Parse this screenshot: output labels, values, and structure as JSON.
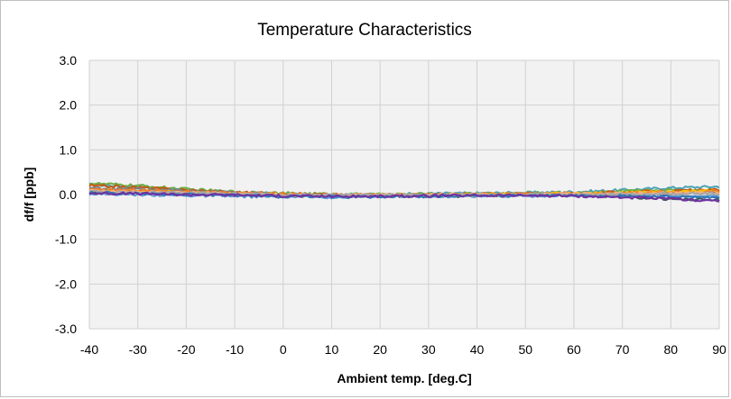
{
  "chart_data": {
    "type": "line",
    "title": "Temperature Characteristics",
    "xlabel": "Ambient temp. [deg.C]",
    "ylabel": "df/f [ppb]",
    "xlim": [
      -40,
      90
    ],
    "ylim": [
      -3.0,
      3.0
    ],
    "x_ticks": [
      "-40",
      "-30",
      "-20",
      "-10",
      "0",
      "10",
      "20",
      "30",
      "40",
      "50",
      "60",
      "70",
      "80",
      "90"
    ],
    "y_ticks": [
      "3.0",
      "2.0",
      "1.0",
      "0.0",
      "-1.0",
      "-2.0",
      "-3.0"
    ],
    "grid": true,
    "legend": "none",
    "x": [
      -40,
      -30,
      -20,
      -10,
      0,
      10,
      20,
      30,
      40,
      50,
      60,
      70,
      80,
      90
    ],
    "series": [
      {
        "color": "#4aa3b8",
        "values": [
          0.22,
          0.18,
          0.1,
          0.05,
          0.02,
          0.0,
          0.0,
          0.02,
          0.03,
          0.04,
          0.06,
          0.1,
          0.15,
          0.18
        ]
      },
      {
        "color": "#70ad47",
        "values": [
          0.25,
          0.2,
          0.12,
          0.06,
          0.03,
          0.01,
          0.0,
          0.01,
          0.02,
          0.03,
          0.04,
          0.07,
          0.1,
          0.12
        ]
      },
      {
        "color": "#c55a11",
        "values": [
          0.2,
          0.16,
          0.1,
          0.05,
          0.02,
          0.0,
          -0.01,
          0.0,
          0.01,
          0.02,
          0.03,
          0.05,
          0.08,
          0.1
        ]
      },
      {
        "color": "#7f7f7f",
        "values": [
          0.15,
          0.12,
          0.08,
          0.04,
          0.01,
          -0.01,
          -0.01,
          0.0,
          0.0,
          0.01,
          0.02,
          0.03,
          0.05,
          0.06
        ]
      },
      {
        "color": "#44546a",
        "values": [
          0.05,
          0.04,
          0.02,
          0.0,
          -0.02,
          -0.04,
          -0.04,
          -0.03,
          -0.03,
          -0.02,
          -0.03,
          -0.05,
          -0.1,
          -0.12
        ]
      },
      {
        "color": "#5b9bd5",
        "values": [
          0.02,
          0.0,
          -0.02,
          -0.04,
          -0.05,
          -0.06,
          -0.05,
          -0.04,
          -0.03,
          -0.03,
          -0.02,
          -0.02,
          -0.03,
          -0.04
        ]
      },
      {
        "color": "#ffc000",
        "values": [
          0.1,
          0.08,
          0.05,
          0.02,
          0.0,
          -0.02,
          -0.02,
          -0.01,
          0.0,
          0.01,
          0.02,
          0.04,
          0.06,
          0.08
        ]
      },
      {
        "color": "#ed7d31",
        "values": [
          0.12,
          0.1,
          0.06,
          0.03,
          0.01,
          -0.01,
          -0.02,
          -0.01,
          0.0,
          0.01,
          0.01,
          0.03,
          0.05,
          0.07
        ]
      },
      {
        "color": "#f4b183",
        "values": [
          0.08,
          0.06,
          0.04,
          0.02,
          0.0,
          -0.01,
          -0.01,
          0.0,
          0.0,
          0.0,
          0.01,
          0.02,
          0.03,
          0.04
        ]
      },
      {
        "color": "#a5a5a5",
        "values": [
          0.06,
          0.05,
          0.03,
          0.01,
          0.0,
          -0.01,
          -0.01,
          -0.01,
          0.0,
          0.0,
          0.0,
          0.01,
          0.02,
          0.02
        ]
      },
      {
        "color": "#2e75b6",
        "values": [
          0.04,
          0.02,
          0.0,
          -0.02,
          -0.04,
          -0.05,
          -0.05,
          -0.04,
          -0.03,
          -0.02,
          -0.02,
          -0.03,
          -0.05,
          -0.07
        ]
      },
      {
        "color": "#7030a0",
        "values": [
          0.03,
          0.02,
          0.0,
          -0.01,
          -0.03,
          -0.04,
          -0.04,
          -0.03,
          -0.02,
          -0.02,
          -0.03,
          -0.06,
          -0.1,
          -0.14
        ]
      }
    ]
  }
}
